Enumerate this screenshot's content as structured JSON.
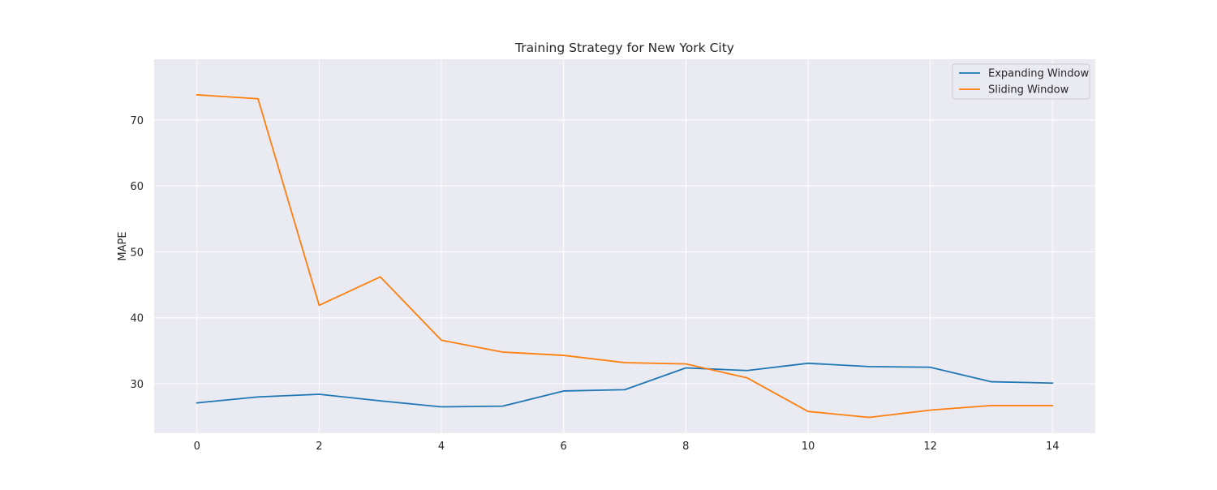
{
  "chart_data": {
    "type": "line",
    "title": "Training Strategy for New York City",
    "xlabel": "",
    "ylabel": "MAPE",
    "xlim": [
      -0.7,
      14.7
    ],
    "ylim": [
      22.5,
      79.2
    ],
    "xticks": [
      0,
      2,
      4,
      6,
      8,
      10,
      12,
      14
    ],
    "yticks": [
      30,
      40,
      50,
      60,
      70
    ],
    "grid": true,
    "legend_position": "top-right",
    "x": [
      0,
      1,
      2,
      3,
      4,
      5,
      6,
      7,
      8,
      9,
      10,
      11,
      12,
      13,
      14
    ],
    "series": [
      {
        "name": "Expanding Window",
        "color": "#1f77b4",
        "values": [
          27.1,
          28.0,
          28.4,
          27.4,
          26.5,
          26.6,
          28.9,
          29.1,
          32.4,
          32.0,
          33.1,
          32.6,
          32.5,
          30.3,
          30.1
        ]
      },
      {
        "name": "Sliding Window",
        "color": "#ff7f0e",
        "values": [
          73.8,
          73.2,
          41.9,
          46.2,
          36.6,
          34.8,
          34.3,
          33.2,
          33.0,
          30.9,
          25.8,
          24.9,
          26.0,
          26.7,
          26.7
        ]
      }
    ],
    "colors": {
      "plot_background": "#eaeaf2",
      "grid": "#ffffff",
      "text": "#262626"
    }
  }
}
